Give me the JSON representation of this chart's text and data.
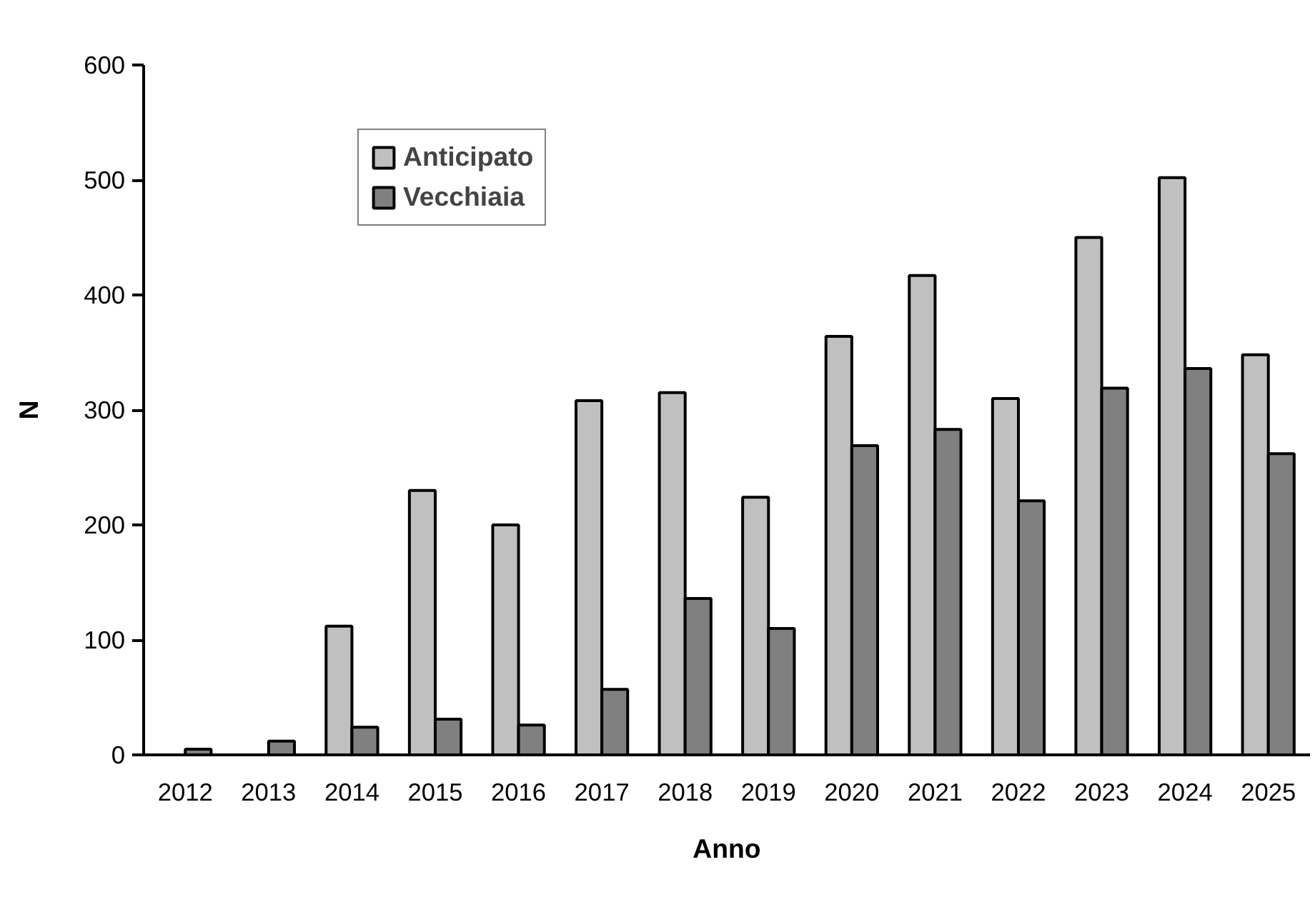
{
  "chart_data": {
    "type": "bar",
    "xlabel": "Anno",
    "ylabel": "N",
    "categories": [
      "2012",
      "2013",
      "2014",
      "2015",
      "2016",
      "2017",
      "2018",
      "2019",
      "2020",
      "2021",
      "2022",
      "2023",
      "2024",
      "2025"
    ],
    "series": [
      {
        "name": "Anticipato",
        "color": "#c0c0c0",
        "values": [
          null,
          null,
          112,
          230,
          200,
          308,
          315,
          224,
          364,
          417,
          310,
          450,
          502,
          348
        ]
      },
      {
        "name": "Vecchiaia",
        "color": "#808080",
        "values": [
          5,
          12,
          24,
          31,
          26,
          57,
          136,
          110,
          269,
          283,
          221,
          319,
          336,
          262
        ]
      }
    ],
    "ylim": [
      0,
      600
    ],
    "yticks": [
      0,
      100,
      200,
      300,
      400,
      500,
      600
    ],
    "grid": false,
    "legend": "top left"
  }
}
